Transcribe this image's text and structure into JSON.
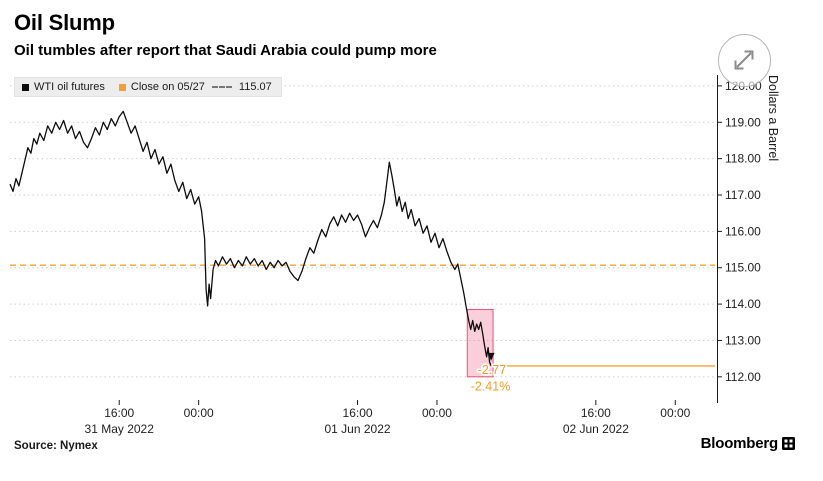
{
  "header": {
    "title": "Oil Slump",
    "subtitle": "Oil tumbles after report that Saudi Arabia could pump more"
  },
  "legend": {
    "series1_label": "WTI oil futures",
    "series2_label": "Close on 05/27",
    "series2_value": "115.07"
  },
  "footer": {
    "source_label": "Source: Nymex",
    "brand": "Bloomberg"
  },
  "colors": {
    "line": "#0d0d0d",
    "accent_orange": "#f2a139",
    "annotation_orange": "#ee9d27",
    "highlight_fill": "rgba(236,64,103,0.25)",
    "highlight_stroke": "rgba(231,54,96,0.85)",
    "grid": "#cfcfcf",
    "axis": "#1a1a1a",
    "tick_text": "#1f1f1f"
  },
  "chart_data": {
    "type": "line",
    "title": "Oil Slump",
    "subtitle": "Oil tumbles after report that Saudi Arabia could pump more",
    "ylabel": "Dollars a Barrel",
    "ylim": [
      111.28,
      120.3
    ],
    "xlim": [
      5,
      76
    ],
    "x_unit": "hours since 2022-05-31 00:00",
    "grid": "horizontal-dotted",
    "legend_position": "top-left",
    "y_ticks": [
      {
        "value": 120,
        "label": "120.00"
      },
      {
        "value": 119,
        "label": "119.00"
      },
      {
        "value": 118,
        "label": "118.00"
      },
      {
        "value": 117,
        "label": "117.00"
      },
      {
        "value": 116,
        "label": "116.00"
      },
      {
        "value": 115,
        "label": "115.00"
      },
      {
        "value": 114,
        "label": "114.00"
      },
      {
        "value": 113,
        "label": "113.00"
      },
      {
        "value": 112,
        "label": "112.00"
      }
    ],
    "x_ticks": [
      {
        "x": 16,
        "label": "16:00"
      },
      {
        "x": 24,
        "label": "00:00"
      },
      {
        "x": 40,
        "label": "16:00"
      },
      {
        "x": 48,
        "label": "00:00"
      },
      {
        "x": 64,
        "label": "16:00"
      },
      {
        "x": 72,
        "label": "00:00"
      }
    ],
    "x_date_labels": [
      {
        "x": 16,
        "label": "31 May 2022"
      },
      {
        "x": 40,
        "label": "01 Jun 2022"
      },
      {
        "x": 64,
        "label": "02 Jun 2022"
      }
    ],
    "series": [
      {
        "name": "WTI oil futures",
        "color": "#0d0d0d",
        "points": [
          [
            5.0,
            117.3
          ],
          [
            5.3,
            117.1
          ],
          [
            5.6,
            117.45
          ],
          [
            5.9,
            117.25
          ],
          [
            6.2,
            117.6
          ],
          [
            6.5,
            117.95
          ],
          [
            6.8,
            118.3
          ],
          [
            7.1,
            118.15
          ],
          [
            7.4,
            118.55
          ],
          [
            7.7,
            118.4
          ],
          [
            8.0,
            118.7
          ],
          [
            8.4,
            118.5
          ],
          [
            8.8,
            118.9
          ],
          [
            9.2,
            118.7
          ],
          [
            9.6,
            119.0
          ],
          [
            10.0,
            118.8
          ],
          [
            10.4,
            119.05
          ],
          [
            10.8,
            118.7
          ],
          [
            11.2,
            118.9
          ],
          [
            11.6,
            118.55
          ],
          [
            12.0,
            118.75
          ],
          [
            12.4,
            118.45
          ],
          [
            12.8,
            118.3
          ],
          [
            13.2,
            118.55
          ],
          [
            13.6,
            118.85
          ],
          [
            14.0,
            118.65
          ],
          [
            14.4,
            119.0
          ],
          [
            14.8,
            118.8
          ],
          [
            15.2,
            119.1
          ],
          [
            15.6,
            118.9
          ],
          [
            16.0,
            119.15
          ],
          [
            16.4,
            119.3
          ],
          [
            16.8,
            119.0
          ],
          [
            17.2,
            118.7
          ],
          [
            17.6,
            118.9
          ],
          [
            18.0,
            118.55
          ],
          [
            18.4,
            118.2
          ],
          [
            18.8,
            118.45
          ],
          [
            19.2,
            118.0
          ],
          [
            19.6,
            118.25
          ],
          [
            20.0,
            117.85
          ],
          [
            20.4,
            118.05
          ],
          [
            20.8,
            117.6
          ],
          [
            21.2,
            117.85
          ],
          [
            21.6,
            117.4
          ],
          [
            22.0,
            117.1
          ],
          [
            22.4,
            117.35
          ],
          [
            22.8,
            116.9
          ],
          [
            23.2,
            117.15
          ],
          [
            23.6,
            116.75
          ],
          [
            24.0,
            116.95
          ],
          [
            24.3,
            116.55
          ],
          [
            24.6,
            115.8
          ],
          [
            24.75,
            114.4
          ],
          [
            24.9,
            113.95
          ],
          [
            25.05,
            114.55
          ],
          [
            25.2,
            114.15
          ],
          [
            25.45,
            114.95
          ],
          [
            25.7,
            115.2
          ],
          [
            26.0,
            115.05
          ],
          [
            26.4,
            115.3
          ],
          [
            26.8,
            115.1
          ],
          [
            27.2,
            115.25
          ],
          [
            27.6,
            115.0
          ],
          [
            28.0,
            115.2
          ],
          [
            28.4,
            115.05
          ],
          [
            28.8,
            115.3
          ],
          [
            29.2,
            115.1
          ],
          [
            29.6,
            115.25
          ],
          [
            30.0,
            115.05
          ],
          [
            30.4,
            115.2
          ],
          [
            30.8,
            114.95
          ],
          [
            31.2,
            115.15
          ],
          [
            31.6,
            115.0
          ],
          [
            32.0,
            115.2
          ],
          [
            32.4,
            115.05
          ],
          [
            32.8,
            115.15
          ],
          [
            33.2,
            114.9
          ],
          [
            33.6,
            114.75
          ],
          [
            34.0,
            114.65
          ],
          [
            34.4,
            114.9
          ],
          [
            34.8,
            115.25
          ],
          [
            35.2,
            115.55
          ],
          [
            35.6,
            115.4
          ],
          [
            36.0,
            115.75
          ],
          [
            36.4,
            116.05
          ],
          [
            36.8,
            115.85
          ],
          [
            37.2,
            116.2
          ],
          [
            37.6,
            116.4
          ],
          [
            38.0,
            116.15
          ],
          [
            38.4,
            116.45
          ],
          [
            38.8,
            116.25
          ],
          [
            39.2,
            116.5
          ],
          [
            39.6,
            116.3
          ],
          [
            40.0,
            116.45
          ],
          [
            40.4,
            116.2
          ],
          [
            40.8,
            115.85
          ],
          [
            41.2,
            116.1
          ],
          [
            41.6,
            116.3
          ],
          [
            42.0,
            116.1
          ],
          [
            42.4,
            116.45
          ],
          [
            42.7,
            116.8
          ],
          [
            43.0,
            117.45
          ],
          [
            43.2,
            117.9
          ],
          [
            43.45,
            117.55
          ],
          [
            43.7,
            117.15
          ],
          [
            43.95,
            116.7
          ],
          [
            44.2,
            116.95
          ],
          [
            44.5,
            116.55
          ],
          [
            44.8,
            116.8
          ],
          [
            45.1,
            116.35
          ],
          [
            45.4,
            116.6
          ],
          [
            45.8,
            116.15
          ],
          [
            46.2,
            116.35
          ],
          [
            46.6,
            115.95
          ],
          [
            47.0,
            116.15
          ],
          [
            47.4,
            115.7
          ],
          [
            47.8,
            115.95
          ],
          [
            48.2,
            115.55
          ],
          [
            48.6,
            115.8
          ],
          [
            49.0,
            115.45
          ],
          [
            49.4,
            115.15
          ],
          [
            49.8,
            114.95
          ],
          [
            50.1,
            115.1
          ],
          [
            50.4,
            114.7
          ],
          [
            50.7,
            114.3
          ],
          [
            50.95,
            113.9
          ],
          [
            51.2,
            113.55
          ],
          [
            51.4,
            113.3
          ],
          [
            51.6,
            113.55
          ],
          [
            51.8,
            113.25
          ],
          [
            52.0,
            113.45
          ],
          [
            52.2,
            113.3
          ],
          [
            52.4,
            113.5
          ],
          [
            52.6,
            113.2
          ],
          [
            52.8,
            112.85
          ],
          [
            53.0,
            112.55
          ],
          [
            53.15,
            112.8
          ],
          [
            53.3,
            112.4
          ],
          [
            53.45,
            112.3
          ]
        ]
      }
    ],
    "reference_lines": [
      {
        "name": "Close on 05/27",
        "value": 115.07,
        "style": "dashed",
        "extent": "full-width"
      },
      {
        "name": "last-price",
        "value": 112.3,
        "style": "solid",
        "extent": "from-last-point"
      }
    ],
    "highlight_box": {
      "x_from": 51.05,
      "x_to": 53.65,
      "price_top": 113.85,
      "price_bottom": 112.0
    },
    "annotations": [
      {
        "text": "-2.77",
        "x": 52.1,
        "price": 112.08
      },
      {
        "text": "-2.41%",
        "x": 51.4,
        "price": 111.62
      }
    ],
    "last_price": 112.3,
    "change": -2.77,
    "change_pct": -2.41
  }
}
